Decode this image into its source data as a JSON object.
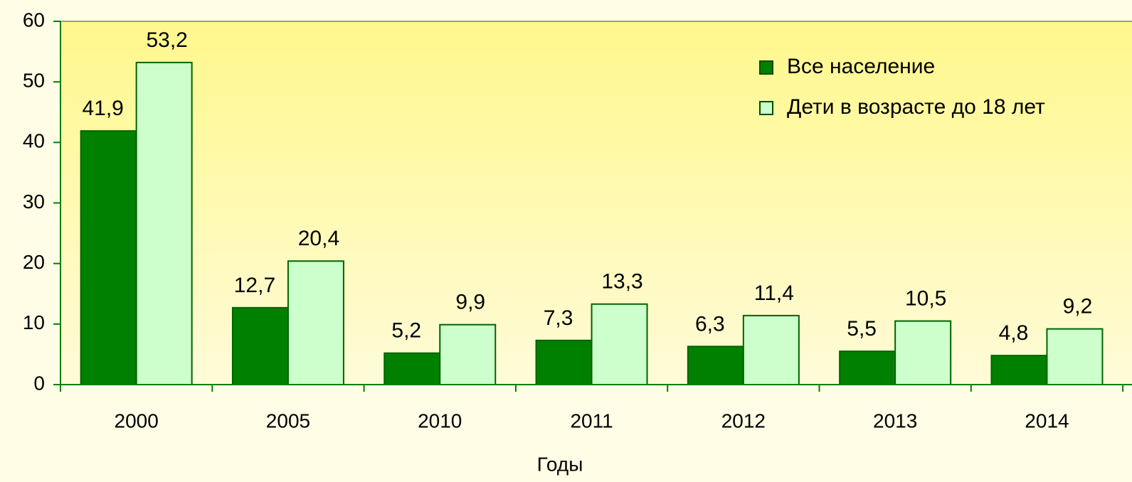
{
  "chart_data": {
    "type": "bar",
    "x_label": "Годы",
    "categories": [
      "2000",
      "2005",
      "2010",
      "2011",
      "2012",
      "2013",
      "2014"
    ],
    "series": [
      {
        "name": "Все население",
        "color": "#008000",
        "values": [
          41.9,
          12.7,
          5.2,
          7.3,
          6.3,
          5.5,
          4.8
        ],
        "value_labels": [
          "41,9",
          "12,7",
          "5,2",
          "7,3",
          "6,3",
          "5,5",
          "4,8"
        ]
      },
      {
        "name": "Дети в возрасте до 18 лет",
        "color": "#ccffcc",
        "values": [
          53.2,
          20.4,
          9.9,
          13.3,
          11.4,
          10.5,
          9.2
        ],
        "value_labels": [
          "53,2",
          "20,4",
          "9,9",
          "13,3",
          "11,4",
          "10,5",
          "9,2"
        ]
      }
    ],
    "ylim": [
      0,
      60
    ],
    "yticks": [
      0,
      10,
      20,
      30,
      40,
      50,
      60
    ]
  }
}
